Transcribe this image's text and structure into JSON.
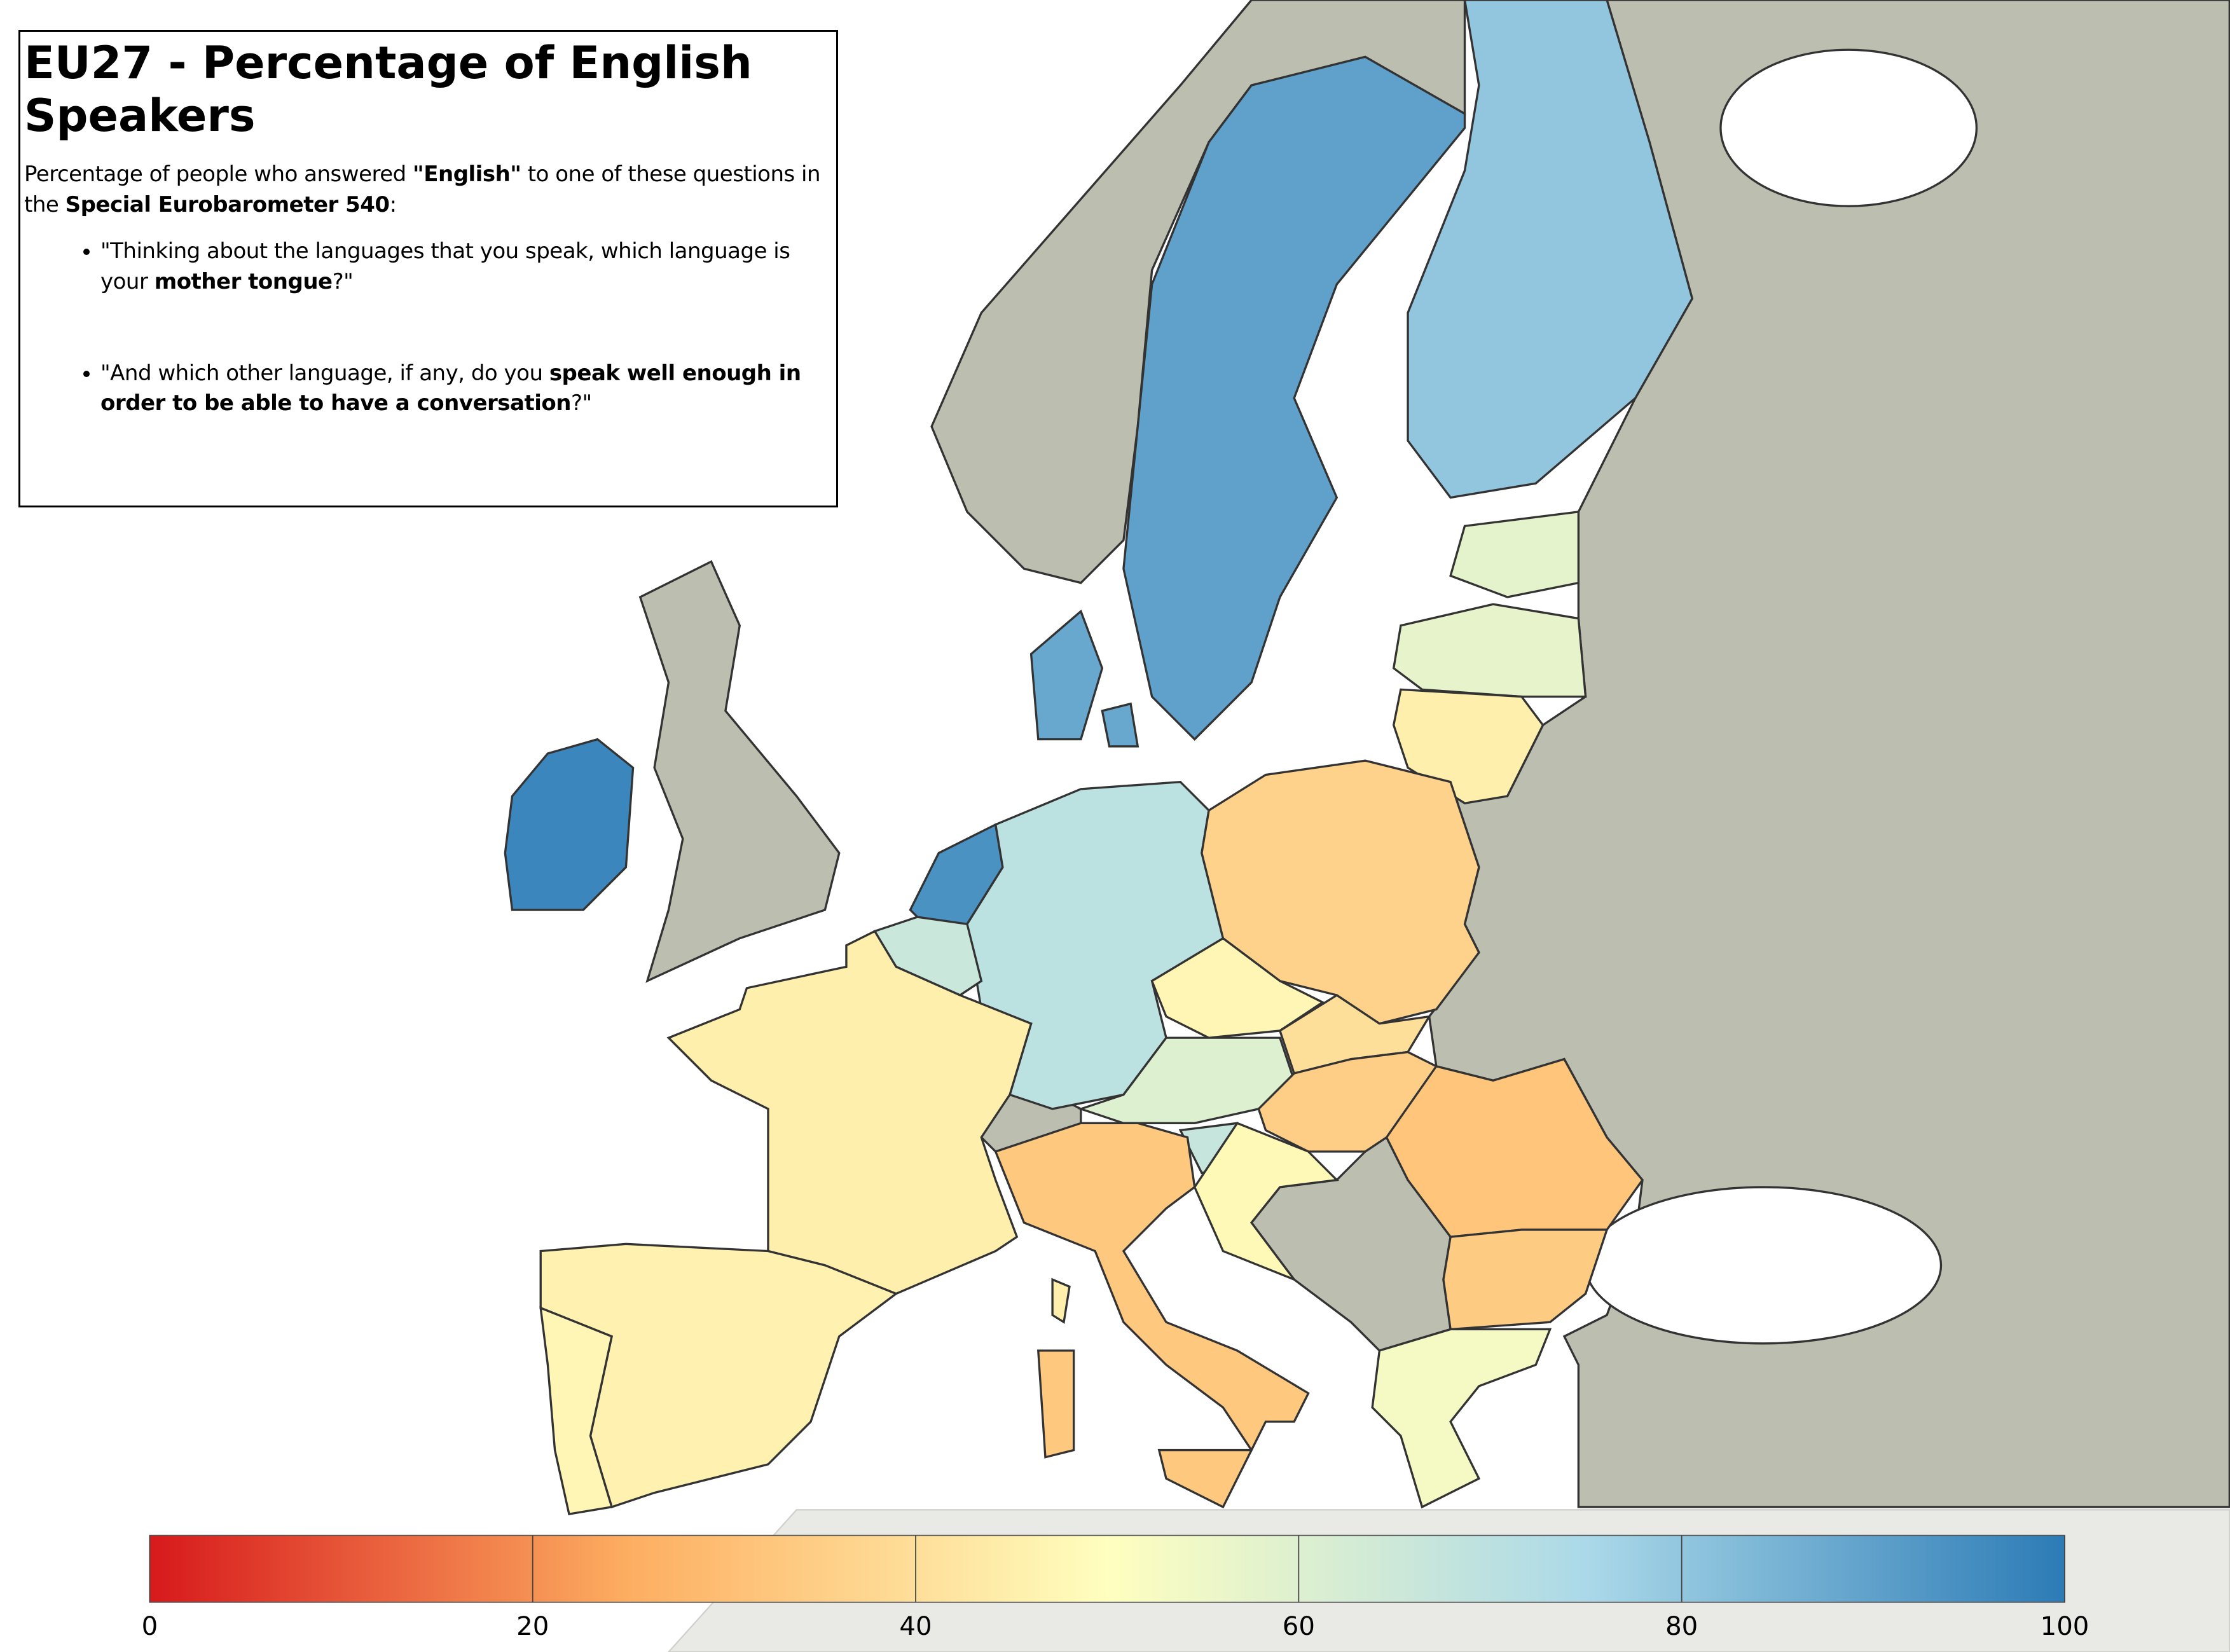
{
  "title": "EU27 - Percentage of English Speakers",
  "intro": [
    {
      "text": "Percentage of people who answered ",
      "bold": false
    },
    {
      "text": "\"English\"",
      "bold": true
    },
    {
      "text": " to one of these questions in the ",
      "bold": false
    },
    {
      "text": "Special Eurobarometer 540",
      "bold": true
    },
    {
      "text": ":",
      "bold": false
    }
  ],
  "questions": [
    [
      {
        "text": "\"Thinking about the languages that you speak, which language is your ",
        "bold": false
      },
      {
        "text": "mother tongue",
        "bold": true
      },
      {
        "text": "?\"",
        "bold": false
      }
    ],
    [
      {
        "text": "\"And which other language, if any, do you ",
        "bold": false
      },
      {
        "text": "speak well enough in order to be able to have a conversation",
        "bold": true
      },
      {
        "text": "?\"",
        "bold": false
      }
    ]
  ],
  "map": {
    "values": [
      97,
      94,
      90,
      88,
      80,
      58,
      57,
      45,
      70,
      66,
      36,
      47,
      40,
      60,
      35,
      67,
      48,
      32,
      34,
      53,
      45,
      46,
      47,
      33
    ],
    "colors": [
      "#d7191c",
      "#fdae61",
      "#ffffbf",
      "#abd9e9",
      "#2c7bb6"
    ],
    "range": [
      0,
      100
    ],
    "ticks": [
      0,
      20,
      40,
      60,
      80,
      100
    ]
  }
}
